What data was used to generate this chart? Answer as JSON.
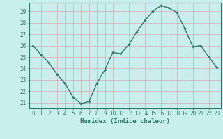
{
  "x": [
    0,
    1,
    2,
    3,
    4,
    5,
    6,
    7,
    8,
    9,
    10,
    11,
    12,
    13,
    14,
    15,
    16,
    17,
    18,
    19,
    20,
    21,
    22,
    23
  ],
  "y": [
    26.0,
    25.2,
    24.5,
    23.5,
    22.7,
    21.5,
    20.9,
    21.1,
    22.7,
    23.9,
    25.4,
    25.3,
    26.1,
    27.2,
    28.2,
    29.0,
    29.5,
    29.3,
    28.9,
    27.5,
    25.9,
    26.0,
    25.0,
    24.1
  ],
  "line_color": "#2d7a6a",
  "marker_color": "#2d7a6a",
  "bg_color": "#c8eeee",
  "grid_major_color": "#d4b8b8",
  "grid_minor_color": "#ddd0d0",
  "axis_color": "#2d7a6a",
  "xlabel": "Humidex (Indice chaleur)",
  "ylim": [
    20.5,
    29.75
  ],
  "xlim": [
    -0.5,
    23.5
  ],
  "yticks": [
    21,
    22,
    23,
    24,
    25,
    26,
    27,
    28,
    29
  ],
  "xticks": [
    0,
    1,
    2,
    3,
    4,
    5,
    6,
    7,
    8,
    9,
    10,
    11,
    12,
    13,
    14,
    15,
    16,
    17,
    18,
    19,
    20,
    21,
    22,
    23
  ],
  "font_color": "#2d7a6a",
  "tick_fontsize": 5.5,
  "label_fontsize": 6.5
}
